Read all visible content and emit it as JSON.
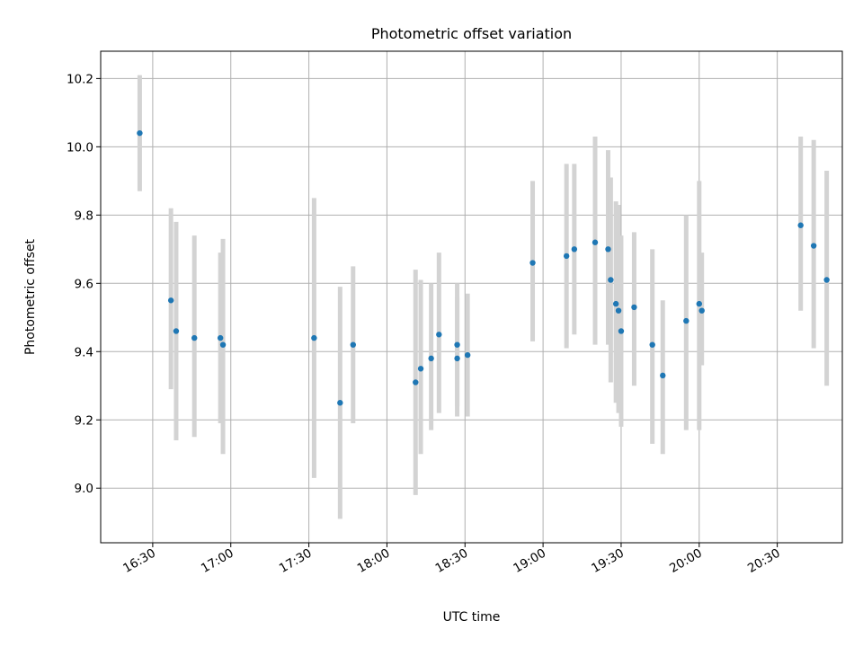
{
  "chart_data": {
    "type": "scatter",
    "title": "Photometric offset variation",
    "xlabel": "UTC time",
    "ylabel": "Photometric offset",
    "grid": true,
    "x_ticks": [
      "16:30",
      "17:00",
      "17:30",
      "18:00",
      "18:30",
      "19:00",
      "19:30",
      "20:00",
      "20:30"
    ],
    "y_ticks": [
      "9.0",
      "9.2",
      "9.4",
      "9.6",
      "9.8",
      "10.0",
      "10.2"
    ],
    "xlim": [
      "16:10",
      "20:55"
    ],
    "ylim": [
      8.84,
      10.28
    ],
    "series": [
      {
        "marker_color": "#1f77b4",
        "errorbar_color": "#d3d3d3",
        "points": [
          {
            "x": "16:25",
            "y": 10.04,
            "ylo": 9.87,
            "yhi": 10.21
          },
          {
            "x": "16:37",
            "y": 9.55,
            "ylo": 9.29,
            "yhi": 9.82
          },
          {
            "x": "16:39",
            "y": 9.46,
            "ylo": 9.14,
            "yhi": 9.78
          },
          {
            "x": "16:46",
            "y": 9.44,
            "ylo": 9.15,
            "yhi": 9.74
          },
          {
            "x": "16:56",
            "y": 9.44,
            "ylo": 9.19,
            "yhi": 9.69
          },
          {
            "x": "16:57",
            "y": 9.42,
            "ylo": 9.1,
            "yhi": 9.73
          },
          {
            "x": "17:32",
            "y": 9.44,
            "ylo": 9.03,
            "yhi": 9.85
          },
          {
            "x": "17:42",
            "y": 9.25,
            "ylo": 8.91,
            "yhi": 9.59
          },
          {
            "x": "17:47",
            "y": 9.42,
            "ylo": 9.19,
            "yhi": 9.65
          },
          {
            "x": "18:11",
            "y": 9.31,
            "ylo": 8.98,
            "yhi": 9.64
          },
          {
            "x": "18:13",
            "y": 9.35,
            "ylo": 9.1,
            "yhi": 9.61
          },
          {
            "x": "18:17",
            "y": 9.38,
            "ylo": 9.17,
            "yhi": 9.6
          },
          {
            "x": "18:20",
            "y": 9.45,
            "ylo": 9.22,
            "yhi": 9.69
          },
          {
            "x": "18:27",
            "y": 9.38,
            "ylo": 9.21,
            "yhi": 9.56
          },
          {
            "x": "18:27",
            "y": 9.42,
            "ylo": 9.24,
            "yhi": 9.6
          },
          {
            "x": "18:31",
            "y": 9.39,
            "ylo": 9.21,
            "yhi": 9.57
          },
          {
            "x": "18:56",
            "y": 9.66,
            "ylo": 9.43,
            "yhi": 9.9
          },
          {
            "x": "19:09",
            "y": 9.68,
            "ylo": 9.41,
            "yhi": 9.95
          },
          {
            "x": "19:12",
            "y": 9.7,
            "ylo": 9.45,
            "yhi": 9.95
          },
          {
            "x": "19:20",
            "y": 9.72,
            "ylo": 9.42,
            "yhi": 10.03
          },
          {
            "x": "19:25",
            "y": 9.7,
            "ylo": 9.42,
            "yhi": 9.99
          },
          {
            "x": "19:26",
            "y": 9.61,
            "ylo": 9.31,
            "yhi": 9.91
          },
          {
            "x": "19:28",
            "y": 9.54,
            "ylo": 9.25,
            "yhi": 9.84
          },
          {
            "x": "19:29",
            "y": 9.52,
            "ylo": 9.22,
            "yhi": 9.83
          },
          {
            "x": "19:30",
            "y": 9.46,
            "ylo": 9.18,
            "yhi": 9.74
          },
          {
            "x": "19:35",
            "y": 9.53,
            "ylo": 9.3,
            "yhi": 9.75
          },
          {
            "x": "19:42",
            "y": 9.42,
            "ylo": 9.13,
            "yhi": 9.7
          },
          {
            "x": "19:46",
            "y": 9.33,
            "ylo": 9.1,
            "yhi": 9.55
          },
          {
            "x": "19:55",
            "y": 9.49,
            "ylo": 9.17,
            "yhi": 9.8
          },
          {
            "x": "20:00",
            "y": 9.54,
            "ylo": 9.17,
            "yhi": 9.9
          },
          {
            "x": "20:01",
            "y": 9.52,
            "ylo": 9.36,
            "yhi": 9.69
          },
          {
            "x": "20:39",
            "y": 9.77,
            "ylo": 9.52,
            "yhi": 10.03
          },
          {
            "x": "20:44",
            "y": 9.71,
            "ylo": 9.41,
            "yhi": 10.02
          },
          {
            "x": "20:49",
            "y": 9.61,
            "ylo": 9.3,
            "yhi": 9.93
          }
        ]
      }
    ]
  }
}
